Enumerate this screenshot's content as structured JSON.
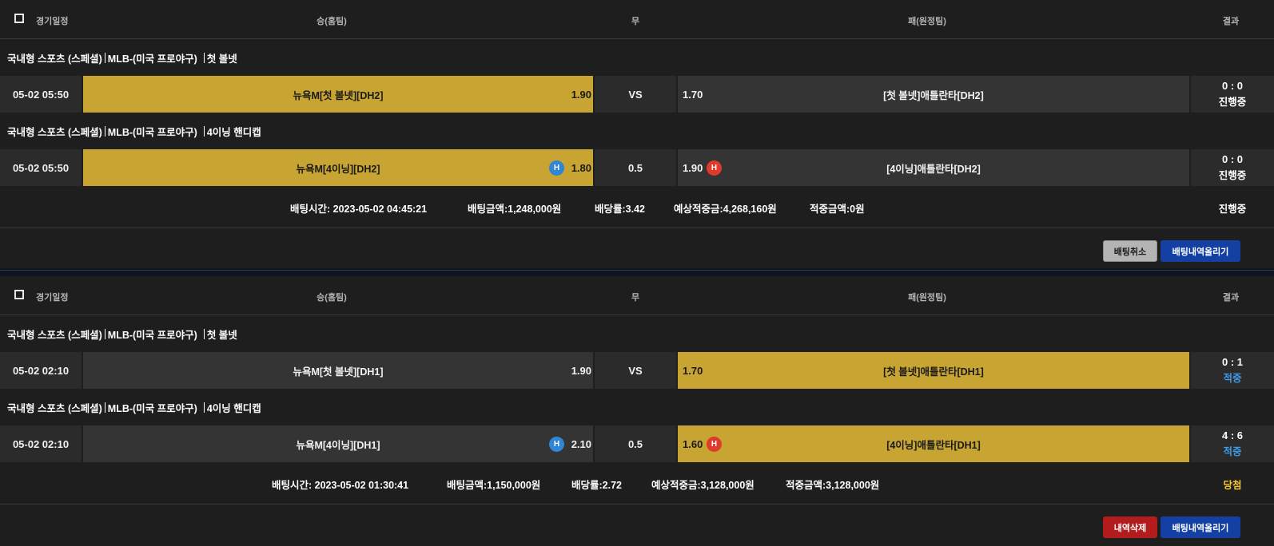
{
  "header": {
    "date": "경기일정",
    "win": "승(홈팀)",
    "draw": "무",
    "lose": "패(원정팀)",
    "result": "결과"
  },
  "slips": [
    {
      "groups": [
        {
          "league": {
            "category": "국내형 스포츠 (스페셜)",
            "competition": "MLB-(미국 프로야구)",
            "market": "첫 볼넷"
          },
          "row": {
            "date": "05-02 05:50",
            "home": "뉴욕M[첫 볼넷][DH2]",
            "home_odds": "1.90",
            "draw": "VS",
            "away_odds": "1.70",
            "away": "[첫 볼넷]애틀란타[DH2]",
            "score": "0 : 0",
            "status": "진행중",
            "selected": "home"
          }
        },
        {
          "league": {
            "category": "국내형 스포츠 (스페셜)",
            "competition": "MLB-(미국 프로야구)",
            "market": "4이닝 핸디캡"
          },
          "row": {
            "date": "05-02 05:50",
            "home": "뉴욕M[4이닝][DH2]",
            "home_badge": "H",
            "home_odds": "1.80",
            "draw": "0.5",
            "away_odds": "1.90",
            "away_badge": "H",
            "away": "[4이닝]애틀란타[DH2]",
            "score": "0 : 0",
            "status": "진행중",
            "selected": "home"
          }
        }
      ],
      "summary": {
        "bet_time": "배팅시간: 2023-05-02 04:45:21",
        "bet_amount": "배팅금액:1,248,000원",
        "odds": "배당률:3.42",
        "expected": "예상적중금:4,268,160원",
        "hit_amount": "적중금액:0원",
        "status": "진행중"
      },
      "buttons": {
        "cancel": "배팅취소",
        "post": "배팅내역올리기"
      }
    },
    {
      "groups": [
        {
          "league": {
            "category": "국내형 스포츠 (스페셜)",
            "competition": "MLB-(미국 프로야구)",
            "market": "첫 볼넷"
          },
          "row": {
            "date": "05-02 02:10",
            "home": "뉴욕M[첫 볼넷][DH1]",
            "home_odds": "1.90",
            "draw": "VS",
            "away_odds": "1.70",
            "away": "[첫 볼넷]애틀란타[DH1]",
            "score": "0 : 1",
            "status": "적중",
            "selected": "away"
          }
        },
        {
          "league": {
            "category": "국내형 스포츠 (스페셜)",
            "competition": "MLB-(미국 프로야구)",
            "market": "4이닝 핸디캡"
          },
          "row": {
            "date": "05-02 02:10",
            "home": "뉴욕M[4이닝][DH1]",
            "home_badge": "H",
            "home_odds": "2.10",
            "draw": "0.5",
            "away_odds": "1.60",
            "away_badge": "H",
            "away": "[4이닝]애틀란타[DH1]",
            "score": "4 : 6",
            "status": "적중",
            "selected": "away"
          }
        }
      ],
      "summary": {
        "bet_time": "배팅시간: 2023-05-02 01:30:41",
        "bet_amount": "배팅금액:1,150,000원",
        "odds": "배당률:2.72",
        "expected": "예상적중금:3,128,000원",
        "hit_amount": "적중금액:3,128,000원",
        "status": "당첨"
      },
      "buttons": {
        "delete": "내역삭제",
        "post": "배팅내역올리기"
      }
    }
  ],
  "colors": {
    "selected": "#c8a432",
    "hit": "#3f9ae8",
    "won": "#f4c430",
    "badge_home": "#2f86d6",
    "badge_away": "#e03a2d"
  }
}
